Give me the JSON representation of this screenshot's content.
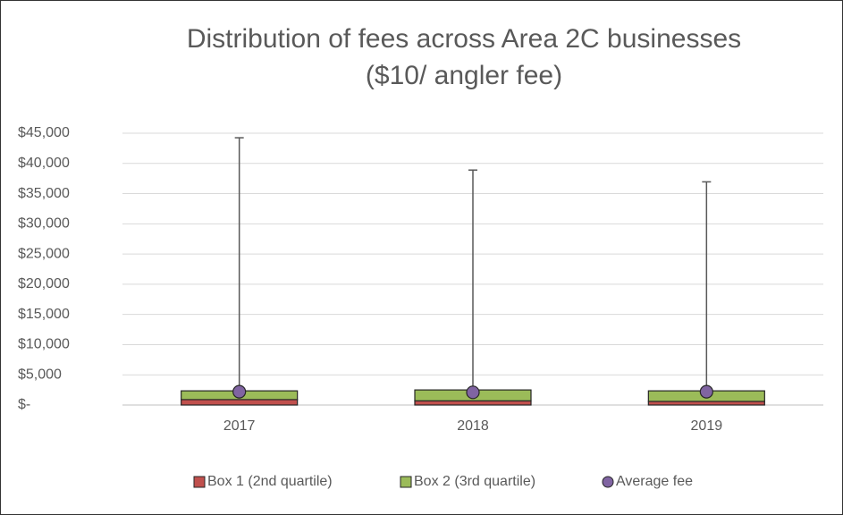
{
  "chart_data": {
    "type": "bar",
    "stacked": true,
    "title": [
      "Distribution of fees across Area 2C businesses",
      "($10/ angler fee)"
    ],
    "categories": [
      "2017",
      "2018",
      "2019"
    ],
    "series": [
      {
        "name": "Box 1 (2nd quartile)",
        "color": "#c0504d",
        "values": [
          900,
          700,
          600
        ]
      },
      {
        "name": "Box 2 (3rd quartile)",
        "color": "#9bbb59",
        "values": [
          1450,
          1800,
          1750
        ],
        "errors": [
          41900,
          36400,
          34600
        ]
      },
      {
        "name": "Average fee",
        "color": "#8064a2",
        "type": "scatter",
        "values": [
          2200,
          2100,
          2200
        ]
      }
    ],
    "ylim": [
      0,
      45000
    ],
    "yticks": [
      {
        "value": 0,
        "label": "$-"
      },
      {
        "value": 5000,
        "label": "$5,000"
      },
      {
        "value": 10000,
        "label": "$10,000"
      },
      {
        "value": 15000,
        "label": "$15,000"
      },
      {
        "value": 20000,
        "label": "$20,000"
      },
      {
        "value": 25000,
        "label": "$25,000"
      },
      {
        "value": 30000,
        "label": "$30,000"
      },
      {
        "value": 35000,
        "label": "$35,000"
      },
      {
        "value": 40000,
        "label": "$40,000"
      },
      {
        "value": 45000,
        "label": "$45,000"
      }
    ],
    "grid": true,
    "legend": "bottom"
  }
}
